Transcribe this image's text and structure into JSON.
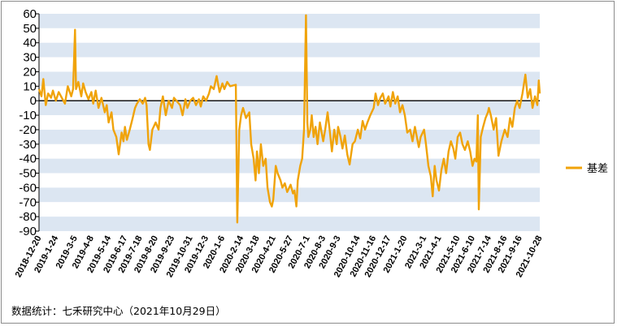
{
  "chart_data": {
    "type": "line",
    "title": "",
    "xlabel": "",
    "ylabel": "",
    "ylim": [
      -90,
      60
    ],
    "yticks": [
      60,
      50,
      40,
      30,
      20,
      10,
      0,
      -10,
      -20,
      -30,
      -40,
      -50,
      -60,
      -70,
      -80,
      -90
    ],
    "x_tick_labels": [
      "2018-12-20",
      "2019-1-24",
      "2019-3-5",
      "2019-4-8",
      "2019-5-14",
      "2019-6-17",
      "2019-7-18",
      "2019-8-20",
      "2019-9-23",
      "2019-10-31",
      "2019-12-3",
      "2020-1-6",
      "2020-2-14",
      "2020-3-18",
      "2020-4-21",
      "2020-5-27",
      "2020-7-1",
      "2020-8-3",
      "2020-9-3",
      "2020-10-14",
      "2020-11-16",
      "2020-12-17",
      "2021-1-20",
      "2021-3-1",
      "2021-4-1",
      "2021-5-10",
      "2021-6-10",
      "2021-7-14",
      "2021-8-16",
      "2021-9-16",
      "2021-10-28"
    ],
    "grid": "alternating horizontal bands",
    "band_colors": [
      "#dce6f2",
      "#ffffff"
    ],
    "zero_line": true,
    "legend_position": "right",
    "series": [
      {
        "name": "基差",
        "color": "#f0a30a",
        "points": [
          [
            "2018-12-20",
            8
          ],
          [
            "2018-12-25",
            3
          ],
          [
            "2018-12-29",
            15
          ],
          [
            "2019-1-3",
            -3
          ],
          [
            "2019-1-8",
            5
          ],
          [
            "2019-1-14",
            2
          ],
          [
            "2019-1-18",
            7
          ],
          [
            "2019-1-24",
            0
          ],
          [
            "2019-1-30",
            6
          ],
          [
            "2019-2-12",
            -2
          ],
          [
            "2019-2-18",
            10
          ],
          [
            "2019-2-25",
            3
          ],
          [
            "2019-3-1",
            8
          ],
          [
            "2019-3-5",
            49
          ],
          [
            "2019-3-7",
            8
          ],
          [
            "2019-3-12",
            13
          ],
          [
            "2019-3-18",
            3
          ],
          [
            "2019-3-22",
            12
          ],
          [
            "2019-3-27",
            6
          ],
          [
            "2019-4-2",
            1
          ],
          [
            "2019-4-8",
            6
          ],
          [
            "2019-4-12",
            -2
          ],
          [
            "2019-4-17",
            7
          ],
          [
            "2019-4-23",
            -5
          ],
          [
            "2019-4-29",
            2
          ],
          [
            "2019-5-6",
            -8
          ],
          [
            "2019-5-10",
            -3
          ],
          [
            "2019-5-14",
            -15
          ],
          [
            "2019-5-20",
            -8
          ],
          [
            "2019-5-24",
            -20
          ],
          [
            "2019-5-30",
            -25
          ],
          [
            "2019-6-4",
            -37
          ],
          [
            "2019-6-10",
            -22
          ],
          [
            "2019-6-14",
            -28
          ],
          [
            "2019-6-17",
            -18
          ],
          [
            "2019-6-21",
            -27
          ],
          [
            "2019-6-27",
            -20
          ],
          [
            "2019-7-3",
            -12
          ],
          [
            "2019-7-8",
            -5
          ],
          [
            "2019-7-12",
            -2
          ],
          [
            "2019-7-18",
            1
          ],
          [
            "2019-7-24",
            -2
          ],
          [
            "2019-7-29",
            2
          ],
          [
            "2019-8-1",
            -3
          ],
          [
            "2019-8-5",
            -30
          ],
          [
            "2019-8-8",
            -34
          ],
          [
            "2019-8-13",
            -20
          ],
          [
            "2019-8-20",
            -15
          ],
          [
            "2019-8-26",
            -20
          ],
          [
            "2019-8-30",
            -5
          ],
          [
            "2019-9-4",
            3
          ],
          [
            "2019-9-10",
            -10
          ],
          [
            "2019-9-16",
            0
          ],
          [
            "2019-9-23",
            -5
          ],
          [
            "2019-9-27",
            2
          ],
          [
            "2019-10-10",
            -3
          ],
          [
            "2019-10-15",
            -10
          ],
          [
            "2019-10-21",
            1
          ],
          [
            "2019-10-25",
            -5
          ],
          [
            "2019-10-31",
            0
          ],
          [
            "2019-11-6",
            2
          ],
          [
            "2019-11-12",
            -3
          ],
          [
            "2019-11-18",
            1
          ],
          [
            "2019-11-22",
            -4
          ],
          [
            "2019-11-27",
            3
          ],
          [
            "2019-12-3",
            0
          ],
          [
            "2019-12-9",
            5
          ],
          [
            "2019-12-13",
            10
          ],
          [
            "2019-12-19",
            8
          ],
          [
            "2019-12-25",
            17
          ],
          [
            "2019-12-31",
            6
          ],
          [
            "2020-1-6",
            12
          ],
          [
            "2020-1-10",
            8
          ],
          [
            "2020-1-16",
            13
          ],
          [
            "2020-1-22",
            10
          ],
          [
            "2020-2-3",
            11
          ],
          [
            "2020-2-6",
            -84
          ],
          [
            "2020-2-10",
            -20
          ],
          [
            "2020-2-14",
            -10
          ],
          [
            "2020-2-18",
            -5
          ],
          [
            "2020-2-24",
            -12
          ],
          [
            "2020-3-2",
            -8
          ],
          [
            "2020-3-6",
            -30
          ],
          [
            "2020-3-11",
            -40
          ],
          [
            "2020-3-15",
            -55
          ],
          [
            "2020-3-18",
            -35
          ],
          [
            "2020-3-22",
            -50
          ],
          [
            "2020-3-26",
            -30
          ],
          [
            "2020-3-31",
            -45
          ],
          [
            "2020-4-5",
            -40
          ],
          [
            "2020-4-9",
            -60
          ],
          [
            "2020-4-14",
            -70
          ],
          [
            "2020-4-18",
            -73
          ],
          [
            "2020-4-21",
            -68
          ],
          [
            "2020-4-26",
            -45
          ],
          [
            "2020-4-30",
            -50
          ],
          [
            "2020-5-6",
            -55
          ],
          [
            "2020-5-10",
            -60
          ],
          [
            "2020-5-15",
            -57
          ],
          [
            "2020-5-20",
            -63
          ],
          [
            "2020-5-27",
            -58
          ],
          [
            "2020-6-1",
            -64
          ],
          [
            "2020-6-4",
            -62
          ],
          [
            "2020-6-8",
            -73
          ],
          [
            "2020-6-11",
            -55
          ],
          [
            "2020-6-16",
            -45
          ],
          [
            "2020-6-20",
            -40
          ],
          [
            "2020-6-24",
            -20
          ],
          [
            "2020-6-28",
            59
          ],
          [
            "2020-7-1",
            -15
          ],
          [
            "2020-7-3",
            -25
          ],
          [
            "2020-7-7",
            -20
          ],
          [
            "2020-7-10",
            -10
          ],
          [
            "2020-7-14",
            -25
          ],
          [
            "2020-7-18",
            -18
          ],
          [
            "2020-7-22",
            -30
          ],
          [
            "2020-7-27",
            -15
          ],
          [
            "2020-8-3",
            -28
          ],
          [
            "2020-8-7",
            -20
          ],
          [
            "2020-8-12",
            -8
          ],
          [
            "2020-8-17",
            -22
          ],
          [
            "2020-8-21",
            -35
          ],
          [
            "2020-8-26",
            -20
          ],
          [
            "2020-8-31",
            -30
          ],
          [
            "2020-9-3",
            -18
          ],
          [
            "2020-9-8",
            -25
          ],
          [
            "2020-9-12",
            -33
          ],
          [
            "2020-9-17",
            -24
          ],
          [
            "2020-9-22",
            -37
          ],
          [
            "2020-9-27",
            -44
          ],
          [
            "2020-10-3",
            -30
          ],
          [
            "2020-10-8",
            -28
          ],
          [
            "2020-10-14",
            -20
          ],
          [
            "2020-10-19",
            -26
          ],
          [
            "2020-10-24",
            -14
          ],
          [
            "2020-10-29",
            -20
          ],
          [
            "2020-11-3",
            -15
          ],
          [
            "2020-11-9",
            -10
          ],
          [
            "2020-11-16",
            -5
          ],
          [
            "2020-11-20",
            5
          ],
          [
            "2020-11-25",
            -3
          ],
          [
            "2020-11-30",
            2
          ],
          [
            "2020-12-5",
            5
          ],
          [
            "2020-12-10",
            -2
          ],
          [
            "2020-12-17",
            3
          ],
          [
            "2020-12-21",
            -4
          ],
          [
            "2020-12-26",
            6
          ],
          [
            "2020-12-31",
            -2
          ],
          [
            "2021-1-5",
            3
          ],
          [
            "2021-1-10",
            -8
          ],
          [
            "2021-1-15",
            -3
          ],
          [
            "2021-1-20",
            -10
          ],
          [
            "2021-1-25",
            -22
          ],
          [
            "2021-1-31",
            -20
          ],
          [
            "2021-2-5",
            -28
          ],
          [
            "2021-2-10",
            -18
          ],
          [
            "2021-2-18",
            -32
          ],
          [
            "2021-2-22",
            -25
          ],
          [
            "2021-3-1",
            -20
          ],
          [
            "2021-3-5",
            -30
          ],
          [
            "2021-3-10",
            -45
          ],
          [
            "2021-3-15",
            -52
          ],
          [
            "2021-3-19",
            -66
          ],
          [
            "2021-3-23",
            -45
          ],
          [
            "2021-3-27",
            -55
          ],
          [
            "2021-4-1",
            -62
          ],
          [
            "2021-4-6",
            -48
          ],
          [
            "2021-4-11",
            -40
          ],
          [
            "2021-4-16",
            -50
          ],
          [
            "2021-4-21",
            -35
          ],
          [
            "2021-4-26",
            -28
          ],
          [
            "2021-5-1",
            -33
          ],
          [
            "2021-5-5",
            -40
          ],
          [
            "2021-5-10",
            -25
          ],
          [
            "2021-5-15",
            -22
          ],
          [
            "2021-5-20",
            -30
          ],
          [
            "2021-5-25",
            -34
          ],
          [
            "2021-5-31",
            -28
          ],
          [
            "2021-6-5",
            -35
          ],
          [
            "2021-6-10",
            -45
          ],
          [
            "2021-6-14",
            -40
          ],
          [
            "2021-6-18",
            -42
          ],
          [
            "2021-6-21",
            -10
          ],
          [
            "2021-6-23",
            -75
          ],
          [
            "2021-6-27",
            -25
          ],
          [
            "2021-7-2",
            -18
          ],
          [
            "2021-7-7",
            -12
          ],
          [
            "2021-7-12",
            -8
          ],
          [
            "2021-7-14",
            -5
          ],
          [
            "2021-7-18",
            -10
          ],
          [
            "2021-7-24",
            -20
          ],
          [
            "2021-7-29",
            -12
          ],
          [
            "2021-8-3",
            -38
          ],
          [
            "2021-8-9",
            -28
          ],
          [
            "2021-8-16",
            -20
          ],
          [
            "2021-8-22",
            -25
          ],
          [
            "2021-8-27",
            -12
          ],
          [
            "2021-9-1",
            -18
          ],
          [
            "2021-9-6",
            -5
          ],
          [
            "2021-9-11",
            0
          ],
          [
            "2021-9-16",
            -5
          ],
          [
            "2021-9-22",
            5
          ],
          [
            "2021-9-28",
            18
          ],
          [
            "2021-10-3",
            2
          ],
          [
            "2021-10-8",
            8
          ],
          [
            "2021-10-13",
            -5
          ],
          [
            "2021-10-18",
            3
          ],
          [
            "2021-10-23",
            -3
          ],
          [
            "2021-10-26",
            14
          ],
          [
            "2021-10-28",
            5
          ]
        ]
      }
    ]
  },
  "footer": {
    "source": "数据统计：七禾研究中心（2021年10月29日）"
  }
}
